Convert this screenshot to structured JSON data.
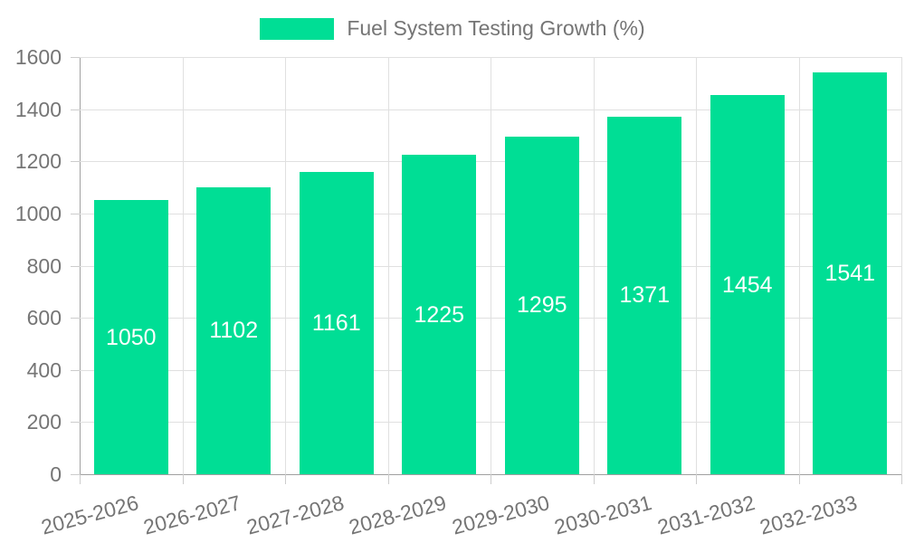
{
  "chart_data": {
    "type": "bar",
    "title": "Fuel System Testing Growth (%)",
    "categories": [
      "2025-2026",
      "2026-2027",
      "2027-2028",
      "2028-2029",
      "2029-2030",
      "2030-2031",
      "2031-2032",
      "2032-2033"
    ],
    "series": [
      {
        "name": "Fuel System Testing Growth (%)",
        "values": [
          1050,
          1102,
          1161,
          1225,
          1295,
          1371,
          1454,
          1541
        ]
      }
    ],
    "xlabel": "",
    "ylabel": "",
    "ylim": [
      0,
      1600
    ],
    "y_ticks": [
      0,
      200,
      400,
      600,
      800,
      1000,
      1200,
      1400,
      1600
    ],
    "grid": true,
    "legend_position": "top-center",
    "bar_label_position": "inside-center",
    "x_label_rotation_deg": -15,
    "colors": {
      "bar": "#00de95",
      "bar_label": "#ffffff",
      "axis_text": "#757575",
      "grid": "#e0e0e0",
      "axis_line": "#a0a0a0",
      "tick": "#cccccc",
      "background": "#ffffff"
    }
  }
}
